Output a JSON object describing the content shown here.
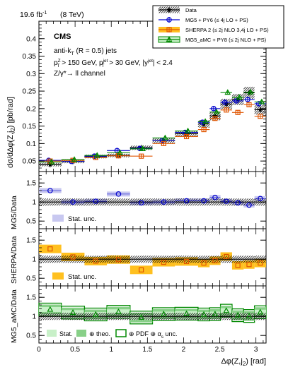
{
  "header": {
    "lumi_label": "19.6 fb",
    "lumi_sup": "-1",
    "energy_label": "(8 TeV)",
    "experiment": "CMS"
  },
  "selection": {
    "line1": "anti-k",
    "line1_sub": "T",
    "line1_rest": " (R = 0.5) jets",
    "line2_a": "p",
    "line2_a_sup": "Z",
    "line2_a_sub": "T",
    "line2_b": " > 150 GeV, p",
    "line2_b_sup": "jet",
    "line2_b_sub": "T",
    "line2_c": " > 30 GeV, |y",
    "line2_c_sup": "jet",
    "line2_d": "| < 2.4",
    "line3": "Z/γ*→ ll channel"
  },
  "legend": {
    "items": [
      {
        "label": "Data",
        "color": "#000000",
        "marker": "star"
      },
      {
        "label": "MG5 + PY6 (≤ 4j LO + PS)",
        "color": "#0000cc",
        "marker": "circle"
      },
      {
        "label": "SHERPA 2 (≤ 2j NLO 3,4j LO + PS)",
        "color": "#e05500",
        "marker": "square"
      },
      {
        "label": "MG5_aMC + PY8 (≤ 2j NLO + PS)",
        "color": "#008800",
        "marker": "triangle"
      }
    ]
  },
  "axes": {
    "main_ylabel": "dσ/dΔφ(Z,j",
    "main_ylabel_sub": "2",
    "main_ylabel_rest": ") [pb/rad]",
    "xlabel": "Δφ(Z,j",
    "xlabel_sub": "2",
    "xlabel_rest": ") [rad]",
    "main_yticks": [
      "0.05",
      "0.1",
      "0.15",
      "0.2",
      "0.25",
      "0.3",
      "0.35",
      "0.4"
    ],
    "ratio_yticks": [
      "0.5",
      "1",
      "1.5"
    ],
    "xticks": [
      "0",
      "0.5",
      "1",
      "1.5",
      "2",
      "2.5",
      "3"
    ]
  },
  "panels": {
    "mg5": {
      "ylabel": "MG5/Data",
      "legend": "Stat. unc."
    },
    "sherpa": {
      "ylabel": "SHERPA/Data",
      "legend": "Stat. unc."
    },
    "amc": {
      "ylabel": "MG5_aMC/Data",
      "legend_stat": "Stat.",
      "legend_theo": "⊕ theo.",
      "legend_pdf": "⊕ PDF ⊕ α",
      "legend_pdf_sub": "s",
      "legend_pdf_rest": " unc."
    }
  },
  "colors": {
    "data": "#000000",
    "mg5": "#0000cc",
    "mg5_band": "#c8c8f0",
    "sherpa": "#e05500",
    "sherpa_band": "#ffc020",
    "amc": "#008800",
    "amc_stat": "#c8f0c8",
    "amc_theo": "#88d088"
  },
  "chart_data": [
    {
      "type": "scatter",
      "title": "",
      "xlabel": "Δφ(Z,j2) [rad]",
      "ylabel": "dσ/dΔφ(Z,j2) [pb/rad]",
      "xlim": [
        0,
        3.14
      ],
      "ylim": [
        0.02,
        0.45
      ],
      "bin_edges": [
        0,
        0.31,
        0.63,
        0.94,
        1.26,
        1.57,
        1.88,
        2.2,
        2.36,
        2.51,
        2.67,
        2.83,
        2.98,
        3.14
      ],
      "series": [
        {
          "name": "Data",
          "values": [
            0.04,
            0.049,
            0.063,
            0.066,
            0.088,
            0.109,
            0.128,
            0.156,
            0.179,
            0.213,
            0.226,
            0.245,
            0.197
          ]
        },
        {
          "name": "MG5 + PY6 (≤ 4j LO + PS)",
          "values": [
            0.052,
            0.049,
            0.064,
            0.08,
            0.086,
            0.109,
            0.132,
            0.161,
            0.2,
            0.218,
            0.222,
            0.226,
            0.214
          ]
        },
        {
          "name": "SHERPA 2 (≤ 2j NLO 3,4j LO + PS)",
          "values": [
            0.05,
            0.052,
            0.06,
            0.065,
            0.064,
            0.1,
            0.12,
            0.14,
            0.172,
            0.196,
            0.189,
            0.211,
            0.178
          ]
        },
        {
          "name": "MG5_aMC + PY8 (≤ 2j NLO + PS)",
          "values": [
            0.047,
            0.054,
            0.066,
            0.074,
            0.085,
            0.116,
            0.136,
            0.163,
            0.19,
            0.246,
            0.232,
            0.247,
            0.219
          ]
        }
      ]
    },
    {
      "type": "scatter",
      "title": "",
      "ylabel": "MG5/Data",
      "ylim": [
        0.3,
        1.8
      ],
      "series": [
        {
          "name": "MG5/Data",
          "values": [
            1.3,
            1.0,
            1.02,
            1.21,
            0.98,
            1.0,
            1.03,
            1.03,
            1.12,
            1.02,
            0.98,
            0.92,
            1.09
          ]
        }
      ]
    },
    {
      "type": "scatter",
      "title": "",
      "ylabel": "SHERPA/Data",
      "ylim": [
        0.3,
        1.8
      ],
      "series": [
        {
          "name": "SHERPA/Data",
          "values": [
            1.27,
            1.06,
            0.95,
            0.99,
            0.72,
            0.92,
            0.94,
            0.9,
            0.96,
            1.07,
            0.84,
            0.86,
            0.9
          ]
        }
      ]
    },
    {
      "type": "scatter",
      "title": "",
      "ylabel": "MG5_aMC/Data",
      "ylim": [
        0.3,
        1.8
      ],
      "series": [
        {
          "name": "MG5_aMC/Data",
          "values": [
            1.18,
            1.1,
            1.05,
            1.12,
            0.97,
            1.06,
            1.07,
            1.05,
            1.06,
            1.15,
            1.03,
            1.01,
            1.11
          ]
        }
      ]
    }
  ]
}
